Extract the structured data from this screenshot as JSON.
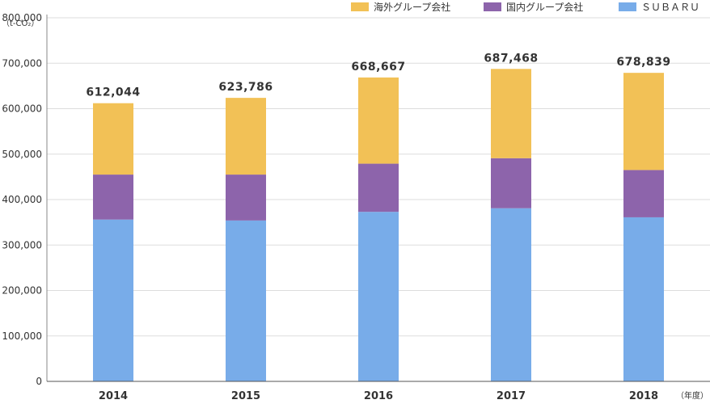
{
  "chart_data": {
    "type": "bar",
    "stacked": true,
    "y_unit_label": "（t-CO₂）",
    "x_unit_label": "（年度）",
    "categories": [
      "2014",
      "2015",
      "2016",
      "2017",
      "2018"
    ],
    "series": [
      {
        "name": "ＳＵＢＡＲＵ",
        "color": "#78ace9",
        "values": [
          356000,
          354000,
          373000,
          381000,
          361000
        ]
      },
      {
        "name": "国内グループ会社",
        "color": "#8d64ab",
        "values": [
          99000,
          101000,
          106000,
          110000,
          104000
        ]
      },
      {
        "name": "海外グループ会社",
        "color": "#f2c156",
        "values": [
          157044,
          168786,
          189667,
          196468,
          213839
        ]
      }
    ],
    "totals": [
      "612,044",
      "623,786",
      "668,667",
      "687,468",
      "678,839"
    ],
    "ylim": [
      0,
      800000
    ],
    "yticks": [
      0,
      100000,
      200000,
      300000,
      400000,
      500000,
      600000,
      700000,
      800000
    ],
    "ytick_labels": [
      "0",
      "100,000",
      "200,000",
      "300,000",
      "400,000",
      "500,000",
      "600,000",
      "700,000",
      "800,000"
    ],
    "grid": true,
    "legend_position": "top-right",
    "legend_order": [
      2,
      1,
      0
    ]
  }
}
